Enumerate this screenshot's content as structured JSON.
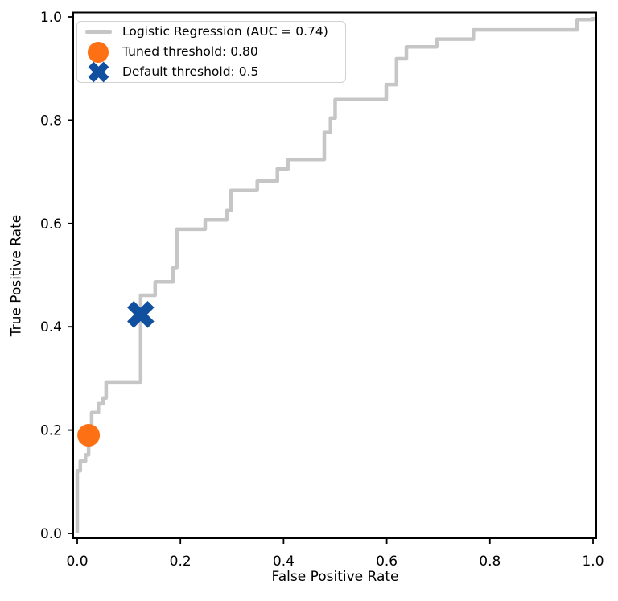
{
  "figure": {
    "background": "#ffffff",
    "spine_color": "#000000",
    "tick_color": "#000000"
  },
  "chart_data": {
    "type": "line",
    "subtype": "roc-curve",
    "title": "",
    "xlabel": "False Positive Rate",
    "ylabel": "True Positive Rate",
    "xlim": [
      0.0,
      1.0
    ],
    "ylim": [
      0.0,
      1.0
    ],
    "grid": false,
    "x_ticks": {
      "values": [
        0.0,
        0.2,
        0.4,
        0.6,
        0.8,
        1.0
      ],
      "labels": [
        "0.0",
        "0.2",
        "0.4",
        "0.6",
        "0.8",
        "1.0"
      ]
    },
    "y_ticks": {
      "values": [
        0.0,
        0.2,
        0.4,
        0.6,
        0.8,
        1.0
      ],
      "labels": [
        "0.0",
        "0.2",
        "0.4",
        "0.6",
        "0.8",
        "1.0"
      ]
    },
    "series": [
      {
        "name": "Logistic Regression (AUC = 0.74)",
        "auc": 0.74,
        "color": "#c6c6c6",
        "line_width": 4.5,
        "points": [
          [
            0.0,
            0.0
          ],
          [
            0.0,
            0.121
          ],
          [
            0.006,
            0.121
          ],
          [
            0.006,
            0.14
          ],
          [
            0.016,
            0.14
          ],
          [
            0.016,
            0.152
          ],
          [
            0.022,
            0.152
          ],
          [
            0.022,
            0.19
          ],
          [
            0.028,
            0.19
          ],
          [
            0.028,
            0.234
          ],
          [
            0.041,
            0.234
          ],
          [
            0.041,
            0.251
          ],
          [
            0.05,
            0.251
          ],
          [
            0.05,
            0.262
          ],
          [
            0.056,
            0.262
          ],
          [
            0.056,
            0.293
          ],
          [
            0.123,
            0.293
          ],
          [
            0.123,
            0.461
          ],
          [
            0.151,
            0.461
          ],
          [
            0.151,
            0.487
          ],
          [
            0.186,
            0.487
          ],
          [
            0.186,
            0.515
          ],
          [
            0.193,
            0.515
          ],
          [
            0.193,
            0.589
          ],
          [
            0.248,
            0.589
          ],
          [
            0.248,
            0.607
          ],
          [
            0.29,
            0.607
          ],
          [
            0.29,
            0.625
          ],
          [
            0.298,
            0.625
          ],
          [
            0.298,
            0.664
          ],
          [
            0.349,
            0.664
          ],
          [
            0.349,
            0.682
          ],
          [
            0.388,
            0.682
          ],
          [
            0.388,
            0.706
          ],
          [
            0.409,
            0.706
          ],
          [
            0.409,
            0.724
          ],
          [
            0.479,
            0.724
          ],
          [
            0.479,
            0.776
          ],
          [
            0.491,
            0.776
          ],
          [
            0.491,
            0.804
          ],
          [
            0.5,
            0.804
          ],
          [
            0.5,
            0.84
          ],
          [
            0.599,
            0.84
          ],
          [
            0.599,
            0.869
          ],
          [
            0.619,
            0.869
          ],
          [
            0.619,
            0.919
          ],
          [
            0.638,
            0.919
          ],
          [
            0.638,
            0.942
          ],
          [
            0.697,
            0.942
          ],
          [
            0.697,
            0.957
          ],
          [
            0.768,
            0.957
          ],
          [
            0.768,
            0.975
          ],
          [
            0.969,
            0.975
          ],
          [
            0.969,
            0.995
          ],
          [
            1.0,
            0.995
          ],
          [
            1.0,
            1.0
          ]
        ]
      }
    ],
    "markers": [
      {
        "id": "tuned-threshold-marker",
        "label": "Tuned threshold: 0.80",
        "shape": "circle",
        "color": "#fd7014",
        "x": 0.022,
        "y": 0.19,
        "size": 14
      },
      {
        "id": "default-threshold-marker",
        "label": "Default threshold: 0.5",
        "shape": "X",
        "color": "#10509e",
        "x": 0.123,
        "y": 0.424,
        "size": 18
      }
    ],
    "legend": {
      "position": "upper-left",
      "entries": [
        {
          "label": "Logistic Regression (AUC = 0.74)",
          "swatch": "line",
          "color": "#c6c6c6"
        },
        {
          "label": "Tuned threshold: 0.80",
          "swatch": "circle",
          "color": "#fd7014"
        },
        {
          "label": "Default threshold: 0.5",
          "swatch": "X",
          "color": "#10509e"
        }
      ]
    }
  }
}
